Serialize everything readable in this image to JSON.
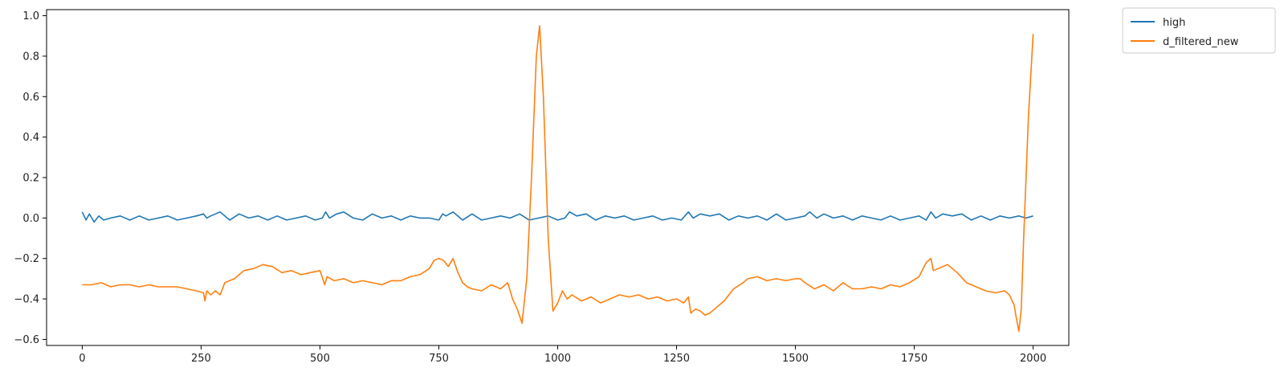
{
  "chart_data": {
    "type": "line",
    "title": "",
    "xlabel": "",
    "ylabel": "",
    "xlim": [
      -75,
      2075
    ],
    "ylim": [
      -0.63,
      1.03
    ],
    "xticks": [
      0,
      250,
      500,
      750,
      1000,
      1250,
      1500,
      1750,
      2000
    ],
    "yticks": [
      -0.6,
      -0.4,
      -0.2,
      0.0,
      0.2,
      0.4,
      0.6,
      0.8,
      1.0
    ],
    "xtick_labels": [
      "0",
      "250",
      "500",
      "750",
      "1000",
      "1250",
      "1500",
      "1750",
      "2000"
    ],
    "ytick_labels": [
      "−0.6",
      "−0.4",
      "−0.2",
      "0.0",
      "0.2",
      "0.4",
      "0.6",
      "0.8",
      "1.0"
    ],
    "grid": false,
    "legend_position": "outside top-right",
    "series": [
      {
        "name": "high",
        "color": "#1f77b4",
        "x": [
          0,
          8,
          15,
          25,
          35,
          45,
          60,
          80,
          100,
          120,
          140,
          160,
          180,
          200,
          220,
          240,
          255,
          262,
          270,
          290,
          310,
          330,
          350,
          370,
          390,
          410,
          430,
          450,
          470,
          490,
          505,
          512,
          520,
          535,
          550,
          570,
          590,
          610,
          630,
          650,
          670,
          690,
          710,
          730,
          750,
          758,
          765,
          780,
          800,
          820,
          840,
          860,
          880,
          900,
          920,
          940,
          960,
          980,
          1000,
          1015,
          1025,
          1040,
          1060,
          1080,
          1100,
          1120,
          1140,
          1160,
          1180,
          1200,
          1220,
          1240,
          1260,
          1275,
          1285,
          1300,
          1320,
          1340,
          1360,
          1380,
          1400,
          1420,
          1440,
          1460,
          1480,
          1500,
          1520,
          1530,
          1545,
          1560,
          1580,
          1600,
          1620,
          1640,
          1660,
          1680,
          1700,
          1720,
          1740,
          1760,
          1775,
          1785,
          1795,
          1810,
          1830,
          1850,
          1870,
          1890,
          1910,
          1930,
          1950,
          1970,
          1985,
          2000
        ],
        "y": [
          0.03,
          -0.01,
          0.02,
          -0.02,
          0.01,
          -0.01,
          0.0,
          0.01,
          -0.01,
          0.01,
          -0.01,
          0.0,
          0.01,
          -0.01,
          0.0,
          0.01,
          0.02,
          0.0,
          0.01,
          0.03,
          -0.01,
          0.02,
          0.0,
          0.01,
          -0.01,
          0.01,
          -0.01,
          0.0,
          0.01,
          -0.01,
          0.0,
          0.03,
          0.0,
          0.02,
          0.03,
          0.0,
          -0.01,
          0.02,
          0.0,
          0.01,
          -0.01,
          0.01,
          0.0,
          0.0,
          -0.01,
          0.02,
          0.01,
          0.03,
          -0.01,
          0.02,
          -0.01,
          0.0,
          0.01,
          0.0,
          0.02,
          -0.01,
          0.0,
          0.01,
          -0.01,
          0.0,
          0.03,
          0.01,
          0.02,
          -0.01,
          0.01,
          0.0,
          0.01,
          -0.01,
          0.0,
          0.01,
          -0.01,
          0.0,
          -0.01,
          0.03,
          0.0,
          0.02,
          0.01,
          0.02,
          -0.01,
          0.01,
          0.0,
          0.01,
          -0.01,
          0.02,
          -0.01,
          0.0,
          0.01,
          0.03,
          0.0,
          0.02,
          0.0,
          0.01,
          -0.01,
          0.01,
          0.0,
          -0.01,
          0.01,
          -0.01,
          0.0,
          0.01,
          -0.01,
          0.03,
          0.0,
          0.02,
          0.01,
          0.02,
          -0.01,
          0.01,
          -0.01,
          0.01,
          0.0,
          0.01,
          0.0,
          0.01
        ]
      },
      {
        "name": "d_filtered_new",
        "color": "#ff7f0e",
        "x": [
          0,
          20,
          40,
          60,
          80,
          100,
          120,
          140,
          160,
          180,
          200,
          220,
          240,
          255,
          258,
          262,
          270,
          280,
          290,
          300,
          320,
          340,
          360,
          380,
          400,
          420,
          440,
          460,
          480,
          500,
          510,
          515,
          530,
          550,
          570,
          590,
          610,
          630,
          650,
          670,
          690,
          710,
          730,
          740,
          750,
          760,
          770,
          780,
          790,
          800,
          810,
          820,
          840,
          860,
          880,
          895,
          905,
          915,
          925,
          935,
          945,
          955,
          962,
          970,
          980,
          990,
          1000,
          1010,
          1020,
          1030,
          1050,
          1070,
          1090,
          1110,
          1130,
          1150,
          1170,
          1190,
          1210,
          1230,
          1250,
          1265,
          1275,
          1280,
          1290,
          1300,
          1310,
          1320,
          1330,
          1350,
          1370,
          1390,
          1400,
          1420,
          1440,
          1460,
          1480,
          1500,
          1510,
          1520,
          1540,
          1560,
          1580,
          1600,
          1620,
          1640,
          1660,
          1680,
          1700,
          1720,
          1740,
          1760,
          1775,
          1785,
          1790,
          1800,
          1820,
          1840,
          1860,
          1880,
          1900,
          1920,
          1940,
          1950,
          1960,
          1965,
          1970,
          1975,
          1980,
          1990,
          2000
        ],
        "y": [
          -0.33,
          -0.33,
          -0.32,
          -0.34,
          -0.33,
          -0.33,
          -0.34,
          -0.33,
          -0.34,
          -0.34,
          -0.34,
          -0.35,
          -0.36,
          -0.37,
          -0.41,
          -0.36,
          -0.38,
          -0.36,
          -0.38,
          -0.32,
          -0.3,
          -0.26,
          -0.25,
          -0.23,
          -0.24,
          -0.27,
          -0.26,
          -0.28,
          -0.27,
          -0.26,
          -0.33,
          -0.29,
          -0.31,
          -0.3,
          -0.32,
          -0.31,
          -0.32,
          -0.33,
          -0.31,
          -0.31,
          -0.29,
          -0.28,
          -0.25,
          -0.21,
          -0.2,
          -0.21,
          -0.24,
          -0.2,
          -0.27,
          -0.32,
          -0.34,
          -0.35,
          -0.36,
          -0.33,
          -0.35,
          -0.32,
          -0.4,
          -0.45,
          -0.52,
          -0.3,
          0.2,
          0.8,
          0.95,
          0.6,
          -0.1,
          -0.46,
          -0.42,
          -0.36,
          -0.4,
          -0.38,
          -0.41,
          -0.39,
          -0.42,
          -0.4,
          -0.38,
          -0.39,
          -0.38,
          -0.4,
          -0.39,
          -0.41,
          -0.4,
          -0.42,
          -0.39,
          -0.47,
          -0.45,
          -0.46,
          -0.48,
          -0.47,
          -0.45,
          -0.41,
          -0.35,
          -0.32,
          -0.3,
          -0.29,
          -0.31,
          -0.3,
          -0.31,
          -0.3,
          -0.3,
          -0.32,
          -0.35,
          -0.33,
          -0.36,
          -0.32,
          -0.35,
          -0.35,
          -0.34,
          -0.35,
          -0.33,
          -0.34,
          -0.32,
          -0.29,
          -0.22,
          -0.2,
          -0.26,
          -0.25,
          -0.23,
          -0.27,
          -0.32,
          -0.34,
          -0.36,
          -0.37,
          -0.36,
          -0.38,
          -0.43,
          -0.5,
          -0.56,
          -0.45,
          -0.1,
          0.5,
          0.91
        ]
      }
    ]
  }
}
